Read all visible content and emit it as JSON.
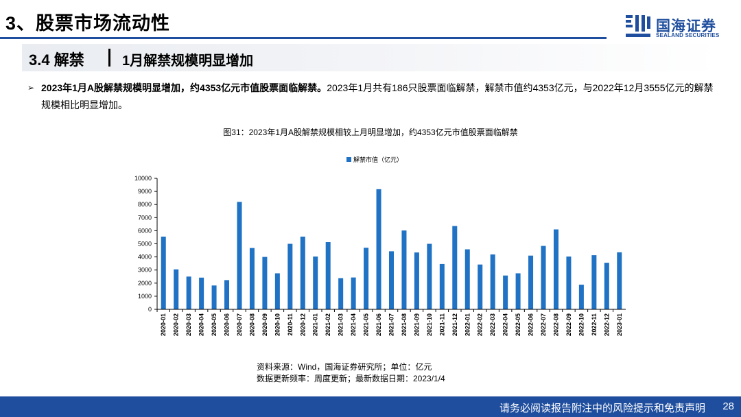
{
  "header": {
    "title": "3、股票市场流动性"
  },
  "logo": {
    "cn": "国海证券",
    "en": "SEALAND SECURITIES",
    "color": "#1f4e9e"
  },
  "section": {
    "number": "3.4 解禁",
    "subtitle": "1月解禁规模明显增加"
  },
  "bullet": {
    "bold": "2023年1月A股解禁规模明显增加，约4353亿元市值股票面临解禁。",
    "normal": "2023年1月共有186只股票面临解禁，解禁市值约4353亿元，与2022年12月3555亿元的解禁规模相比明显增加。"
  },
  "figure": {
    "title": "图31：2023年1月A股解禁规模相较上月明显增加，约4353亿元市值股票面临解禁"
  },
  "notes": {
    "source": "资料来源：Wind，国海证券研究所；单位：亿元",
    "update": "数据更新频率：周度更新；最新数据日期：2023/1/4"
  },
  "footer": {
    "disclaimer": "请务必阅读报告附注中的风险提示和免责声明",
    "page": "28"
  },
  "chart_data": {
    "type": "bar",
    "title": "",
    "xlabel": "",
    "ylabel": "",
    "ylim": [
      0,
      10000
    ],
    "yticks": [
      0,
      1000,
      2000,
      3000,
      4000,
      5000,
      6000,
      7000,
      8000,
      9000,
      10000
    ],
    "legend_position": "top-center",
    "grid": false,
    "color": "#1f72c4",
    "categories": [
      "2020-01",
      "2020-02",
      "2020-03",
      "2020-04",
      "2020-05",
      "2020-06",
      "2020-07",
      "2020-08",
      "2020-09",
      "2020-10",
      "2020-11",
      "2020-12",
      "2021-01",
      "2021-02",
      "2021-03",
      "2021-04",
      "2021-05",
      "2021-06",
      "2021-07",
      "2021-08",
      "2021-09",
      "2021-10",
      "2021-11",
      "2021-12",
      "2022-01",
      "2022-02",
      "2022-03",
      "2022-04",
      "2022-05",
      "2022-06",
      "2022-07",
      "2022-08",
      "2022-09",
      "2022-10",
      "2022-11",
      "2022-12",
      "2023-01"
    ],
    "series": [
      {
        "name": "解禁市值（亿元）",
        "values": [
          5550,
          3050,
          2500,
          2420,
          1820,
          2230,
          8200,
          4680,
          4000,
          2750,
          5000,
          5550,
          4030,
          5130,
          2380,
          2430,
          4700,
          9170,
          4430,
          6020,
          4340,
          5000,
          3460,
          6360,
          4580,
          3420,
          4190,
          2580,
          2750,
          4100,
          4840,
          6100,
          4030,
          1880,
          4130,
          3555,
          4353
        ]
      }
    ]
  }
}
